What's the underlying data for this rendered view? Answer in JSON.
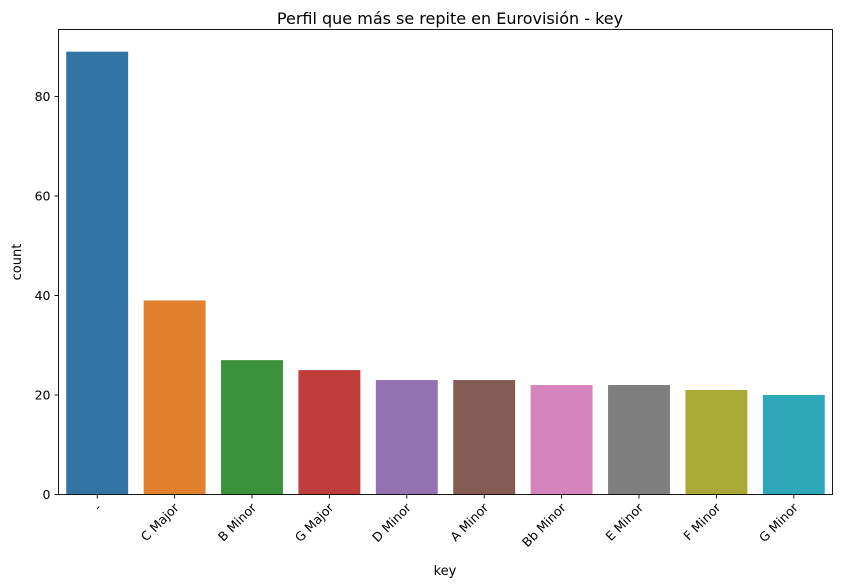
{
  "chart_data": {
    "type": "bar",
    "title": "Perfil que más se repite en Eurovisión - key",
    "xlabel": "key",
    "ylabel": "count",
    "categories": [
      "-",
      "C Major",
      "B Minor",
      "G Major",
      "D Minor",
      "A Minor",
      "Bb Minor",
      "E Minor",
      "F Minor",
      "G Minor"
    ],
    "values": [
      89,
      39,
      27,
      25,
      23,
      23,
      22,
      22,
      21,
      20
    ],
    "colors": [
      "#3274a1",
      "#e1812c",
      "#3a923a",
      "#c03d3e",
      "#9372b2",
      "#845b53",
      "#d684bd",
      "#7f7f7f",
      "#a9aa35",
      "#2ea8b8"
    ],
    "ylim": [
      0,
      93.45
    ],
    "yticks": [
      0,
      20,
      40,
      60,
      80
    ],
    "grid": false,
    "legend": "none"
  }
}
